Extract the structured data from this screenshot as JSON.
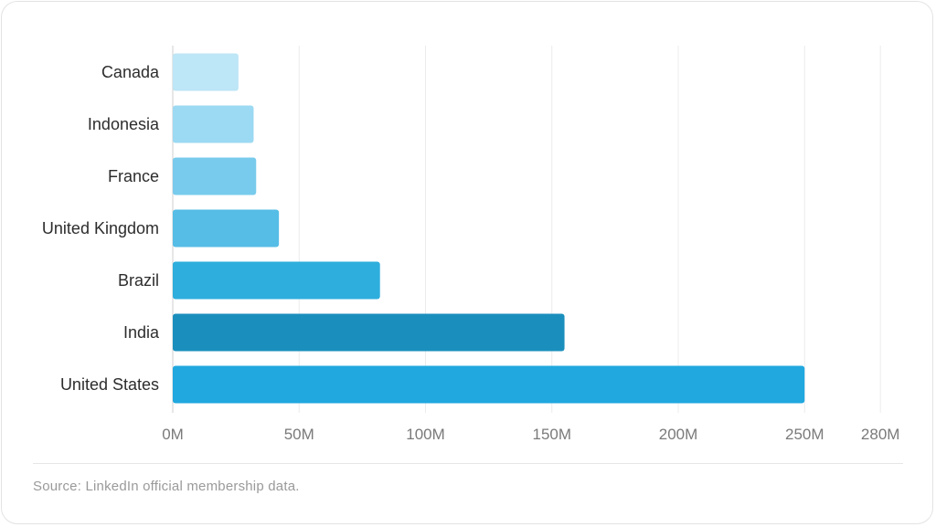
{
  "chart_data": {
    "type": "bar",
    "orientation": "horizontal",
    "categories": [
      "Canada",
      "Indonesia",
      "France",
      "United Kingdom",
      "Brazil",
      "India",
      "United States"
    ],
    "values": [
      26,
      32,
      33,
      42,
      82,
      155,
      250
    ],
    "unit": "M",
    "xlim": [
      0,
      280
    ],
    "x_ticks": [
      "0M",
      "50M",
      "100M",
      "150M",
      "200M",
      "250M",
      "280M"
    ],
    "x_tick_values": [
      0,
      50,
      100,
      150,
      200,
      250,
      280
    ],
    "grid": "vertical",
    "colors": [
      "#bde6f6",
      "#9cd9f2",
      "#78cbec",
      "#55bde6",
      "#2eaedd",
      "#1a8fbd",
      "#21a8df"
    ]
  },
  "footer": {
    "source": "Source: LinkedIn official membership data."
  }
}
